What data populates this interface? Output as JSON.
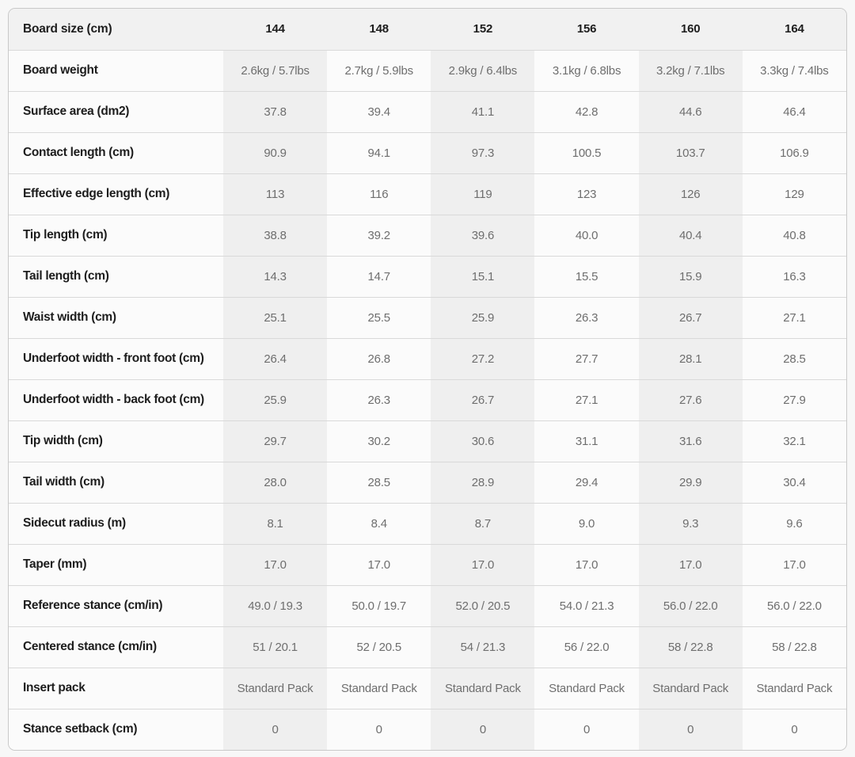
{
  "colors": {
    "page_bg": "#f7f7f7",
    "card_bg": "#fbfbfb",
    "card_border": "#c9c9c9",
    "header_bg": "#f1f1f1",
    "column_stripe": "#efefef",
    "row_separator": "#d9d9d9",
    "label_text": "#1d1d1d",
    "value_text": "#6e6e6e"
  },
  "chart_data": {
    "type": "table",
    "columns": [
      "Board size (cm)",
      "144",
      "148",
      "152",
      "156",
      "160",
      "164"
    ],
    "rows": [
      {
        "label": "Board weight",
        "values": [
          "2.6kg / 5.7lbs",
          "2.7kg / 5.9lbs",
          "2.9kg / 6.4lbs",
          "3.1kg / 6.8lbs",
          "3.2kg / 7.1lbs",
          "3.3kg / 7.4lbs"
        ]
      },
      {
        "label": "Surface area (dm2)",
        "values": [
          "37.8",
          "39.4",
          "41.1",
          "42.8",
          "44.6",
          "46.4"
        ]
      },
      {
        "label": "Contact length (cm)",
        "values": [
          "90.9",
          "94.1",
          "97.3",
          "100.5",
          "103.7",
          "106.9"
        ]
      },
      {
        "label": "Effective edge length (cm)",
        "values": [
          "113",
          "116",
          "119",
          "123",
          "126",
          "129"
        ]
      },
      {
        "label": "Tip length (cm)",
        "values": [
          "38.8",
          "39.2",
          "39.6",
          "40.0",
          "40.4",
          "40.8"
        ]
      },
      {
        "label": "Tail length (cm)",
        "values": [
          "14.3",
          "14.7",
          "15.1",
          "15.5",
          "15.9",
          "16.3"
        ]
      },
      {
        "label": "Waist width (cm)",
        "values": [
          "25.1",
          "25.5",
          "25.9",
          "26.3",
          "26.7",
          "27.1"
        ]
      },
      {
        "label": "Underfoot width - front foot (cm)",
        "values": [
          "26.4",
          "26.8",
          "27.2",
          "27.7",
          "28.1",
          "28.5"
        ]
      },
      {
        "label": "Underfoot width - back foot (cm)",
        "values": [
          "25.9",
          "26.3",
          "26.7",
          "27.1",
          "27.6",
          "27.9"
        ]
      },
      {
        "label": "Tip width (cm)",
        "values": [
          "29.7",
          "30.2",
          "30.6",
          "31.1",
          "31.6",
          "32.1"
        ]
      },
      {
        "label": "Tail width (cm)",
        "values": [
          "28.0",
          "28.5",
          "28.9",
          "29.4",
          "29.9",
          "30.4"
        ]
      },
      {
        "label": "Sidecut radius (m)",
        "values": [
          "8.1",
          "8.4",
          "8.7",
          "9.0",
          "9.3",
          "9.6"
        ]
      },
      {
        "label": "Taper (mm)",
        "values": [
          "17.0",
          "17.0",
          "17.0",
          "17.0",
          "17.0",
          "17.0"
        ]
      },
      {
        "label": "Reference stance (cm/in)",
        "values": [
          "49.0 / 19.3",
          "50.0 / 19.7",
          "52.0 / 20.5",
          "54.0 / 21.3",
          "56.0 / 22.0",
          "56.0 / 22.0"
        ]
      },
      {
        "label": "Centered stance (cm/in)",
        "values": [
          "51 / 20.1",
          "52 / 20.5",
          "54 / 21.3",
          "56 / 22.0",
          "58 / 22.8",
          "58 / 22.8"
        ]
      },
      {
        "label": "Insert pack",
        "values": [
          "Standard Pack",
          "Standard Pack",
          "Standard Pack",
          "Standard Pack",
          "Standard Pack",
          "Standard Pack"
        ]
      },
      {
        "label": "Stance setback (cm)",
        "values": [
          "0",
          "0",
          "0",
          "0",
          "0",
          "0"
        ]
      }
    ]
  }
}
